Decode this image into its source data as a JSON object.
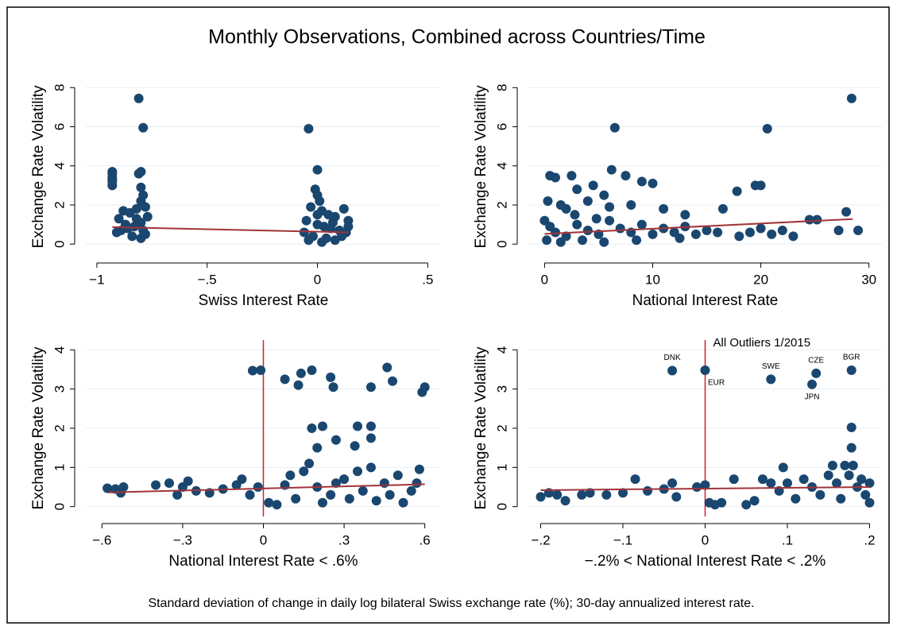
{
  "title": "Monthly Observations, Combined across Countries/Time",
  "note": "Standard deviation of change in daily log bilateral Swiss exchange rate (%); 30-day annualized interest rate.",
  "chart_data": [
    {
      "type": "scatter",
      "x_label": "Swiss Interest Rate",
      "y_label": "Exchange Rate Volatility",
      "color": "#1a476f",
      "fit_color": "#a0343a",
      "grid": true,
      "xlim": [
        -1.05,
        0.56
      ],
      "ylim": [
        -0.6,
        8.5
      ],
      "xticks": [
        {
          "value": -1,
          "label": "−1"
        },
        {
          "value": -0.5,
          "label": "−.5"
        },
        0,
        {
          "value": 0.5,
          "label": ".5"
        }
      ],
      "yticks": [
        0,
        2,
        4,
        6,
        8
      ],
      "points": {
        "x": [
          -0.93,
          -0.93,
          -0.93,
          -0.93,
          -0.93,
          -0.93,
          -0.81,
          -0.79,
          -0.8,
          -0.81,
          -0.8,
          -0.79,
          -0.8,
          -0.82,
          -0.85,
          -0.88,
          -0.9,
          -0.78,
          -0.77,
          -0.8,
          -0.83,
          -0.86,
          -0.89,
          -0.91,
          -0.78,
          -0.8,
          -0.84,
          -0.87,
          -0.79,
          -0.82,
          -0.04,
          0,
          -0.01,
          0,
          0.01,
          -0.03,
          0.02,
          0.05,
          0.08,
          0.12,
          0.14,
          -0.05,
          0,
          0.03,
          0.06,
          0.1,
          0.13,
          -0.06,
          -0.02,
          0.04,
          0.08,
          0.11,
          0.14,
          0.02,
          -0.04,
          0.07,
          0
        ],
        "y": [
          3.0,
          3.2,
          3.4,
          3.6,
          3.7,
          3.3,
          7.45,
          5.95,
          3.7,
          3.6,
          2.9,
          2.5,
          2.2,
          1.8,
          1.6,
          1.7,
          1.3,
          1.9,
          1.4,
          1.1,
          0.9,
          0.8,
          0.7,
          0.6,
          0.5,
          0.3,
          0.4,
          1.0,
          0.7,
          1.3,
          5.9,
          3.8,
          2.8,
          2.5,
          2.2,
          1.9,
          1.7,
          1.5,
          1.4,
          1.8,
          1.2,
          1.2,
          1.0,
          0.9,
          0.8,
          0.7,
          0.6,
          0.6,
          0.4,
          0.3,
          0.2,
          0.4,
          0.9,
          0.1,
          0.2,
          1.1,
          1.5
        ]
      },
      "fit": {
        "x": [
          -0.93,
          0.14
        ],
        "y": [
          0.87,
          0.6
        ]
      }
    },
    {
      "type": "scatter",
      "x_label": "National Interest Rate",
      "y_label": "Exchange Rate Volatility",
      "color": "#1a476f",
      "fit_color": "#a0343a",
      "grid": true,
      "xlim": [
        -1.5,
        31.2
      ],
      "ylim": [
        -0.6,
        8.5
      ],
      "xticks": [
        0,
        10,
        20,
        30
      ],
      "yticks": [
        0,
        2,
        4,
        6,
        8
      ],
      "points": {
        "x": [
          28.4,
          6.5,
          20.6,
          6.2,
          0.5,
          1,
          2.5,
          4.5,
          7.5,
          9,
          10,
          3,
          5.5,
          19.5,
          20,
          17.8,
          0.3,
          1.5,
          2,
          4,
          6,
          8,
          11,
          13,
          16.5,
          24.5,
          25.2,
          27.9,
          27.2,
          29,
          0,
          0.5,
          1,
          2,
          3,
          4,
          5,
          6,
          7,
          8,
          9,
          10,
          11,
          12,
          13,
          14,
          15,
          16,
          18,
          19,
          20,
          21,
          22,
          23,
          0.2,
          1.5,
          3.5,
          5.5,
          8.5,
          12.5,
          2.8,
          4.8
        ],
        "y": [
          7.45,
          5.95,
          5.9,
          3.8,
          3.5,
          3.4,
          3.5,
          3.0,
          3.5,
          3.2,
          3.1,
          2.8,
          2.5,
          3.0,
          3.0,
          2.7,
          2.2,
          2.0,
          1.8,
          2.2,
          1.9,
          2.0,
          1.8,
          1.5,
          1.8,
          1.25,
          1.25,
          1.65,
          0.7,
          0.7,
          1.2,
          0.9,
          0.6,
          0.4,
          1.0,
          0.7,
          0.5,
          1.2,
          0.8,
          0.6,
          1.0,
          0.5,
          0.8,
          0.6,
          0.9,
          0.5,
          0.7,
          0.6,
          0.4,
          0.6,
          0.8,
          0.5,
          0.7,
          0.4,
          0.2,
          0.1,
          0.2,
          0.1,
          0.2,
          0.3,
          1.5,
          1.3
        ]
      },
      "fit": {
        "x": [
          0,
          28.5
        ],
        "y": [
          0.52,
          1.28
        ]
      }
    },
    {
      "type": "scatter",
      "x_label": "National Interest Rate < .6%",
      "y_label": "Exchange Rate Volatility",
      "color": "#1a476f",
      "fit_color": "#a0343a",
      "grid": true,
      "vline": 0,
      "vline_color": "#d0202a",
      "xlim": [
        -0.66,
        0.66
      ],
      "ylim": [
        -0.25,
        4.25
      ],
      "xticks": [
        {
          "value": -0.6,
          "label": "−.6"
        },
        {
          "value": -0.3,
          "label": "−.3"
        },
        0,
        {
          "value": 0.3,
          "label": ".3"
        },
        {
          "value": 0.6,
          "label": ".6"
        }
      ],
      "yticks": [
        0,
        1,
        2,
        3,
        4
      ],
      "points": {
        "x": [
          -0.58,
          -0.55,
          -0.52,
          -0.53,
          -0.4,
          -0.35,
          -0.3,
          -0.32,
          -0.28,
          -0.25,
          -0.2,
          -0.15,
          -0.1,
          -0.08,
          -0.05,
          -0.02,
          -0.04,
          -0.01,
          0.08,
          0.13,
          0.14,
          0.18,
          0.25,
          0.26,
          0.4,
          0.46,
          0.48,
          0.59,
          0.6,
          0.18,
          0.22,
          0.27,
          0.35,
          0.34,
          0.4,
          0.4,
          0.2,
          0.02,
          0.05,
          0.1,
          0.15,
          0.2,
          0.25,
          0.3,
          0.35,
          0.4,
          0.45,
          0.5,
          0.55,
          0.58,
          0.12,
          0.22,
          0.32,
          0.42,
          0.52,
          0.17,
          0.27,
          0.37,
          0.47,
          0.57,
          0.08
        ],
        "y": [
          0.47,
          0.45,
          0.5,
          0.35,
          0.55,
          0.6,
          0.5,
          0.3,
          0.65,
          0.4,
          0.35,
          0.45,
          0.55,
          0.7,
          0.3,
          0.5,
          3.47,
          3.48,
          3.25,
          3.1,
          3.4,
          3.48,
          3.3,
          3.05,
          3.05,
          3.55,
          3.2,
          2.92,
          3.05,
          2.0,
          2.05,
          1.7,
          2.05,
          1.55,
          2.05,
          1.75,
          1.5,
          0.1,
          0.05,
          0.8,
          0.9,
          0.5,
          0.3,
          0.7,
          0.9,
          1.0,
          0.6,
          0.8,
          0.4,
          0.95,
          0.2,
          0.1,
          0.2,
          0.15,
          0.1,
          1.1,
          0.6,
          0.4,
          0.3,
          0.6,
          0.55
        ]
      },
      "fit": {
        "x": [
          -0.58,
          0.6
        ],
        "y": [
          0.36,
          0.57
        ]
      }
    },
    {
      "type": "scatter",
      "x_label": "−.2% < National Interest Rate < .2%",
      "y_label": "Exchange Rate Volatility",
      "annotation": "All Outliers 1/2015",
      "color": "#1a476f",
      "fit_color": "#a0343a",
      "grid": true,
      "vline": 0,
      "vline_color": "#d0202a",
      "xlim": [
        -0.215,
        0.215
      ],
      "ylim": [
        -0.25,
        4.25
      ],
      "xticks": [
        {
          "value": -0.2,
          "label": "−.2"
        },
        {
          "value": -0.1,
          "label": "−.1"
        },
        0,
        {
          "value": 0.1,
          "label": ".1"
        },
        {
          "value": 0.2,
          "label": ".2"
        }
      ],
      "yticks": [
        0,
        1,
        2,
        3,
        4
      ],
      "points": {
        "x": [
          -0.04,
          0,
          0.08,
          0.135,
          0.13,
          0.178,
          -0.2,
          -0.19,
          -0.18,
          -0.17,
          -0.15,
          -0.14,
          -0.12,
          -0.1,
          -0.085,
          -0.07,
          -0.05,
          -0.04,
          -0.035,
          -0.01,
          0,
          0.178,
          0.178,
          0.005,
          0.012,
          0.02,
          0.035,
          0.05,
          0.06,
          0.07,
          0.08,
          0.09,
          0.095,
          0.1,
          0.11,
          0.12,
          0.13,
          0.14,
          0.15,
          0.155,
          0.16,
          0.165,
          0.17,
          0.175,
          0.18,
          0.185,
          0.19,
          0.195,
          0.2,
          0.2
        ],
        "y": [
          3.47,
          3.48,
          3.25,
          3.4,
          3.12,
          3.48,
          0.25,
          0.35,
          0.3,
          0.15,
          0.3,
          0.35,
          0.3,
          0.35,
          0.7,
          0.4,
          0.45,
          0.6,
          0.25,
          0.5,
          0.55,
          2.02,
          1.5,
          0.1,
          0.05,
          0.1,
          0.7,
          0.05,
          0.15,
          0.7,
          0.6,
          0.4,
          1.0,
          0.6,
          0.2,
          0.7,
          0.5,
          0.3,
          0.8,
          1.05,
          0.6,
          0.2,
          1.05,
          0.8,
          1.05,
          0.5,
          0.7,
          0.3,
          0.6,
          0.1
        ],
        "labels": [
          "DNK",
          "EUR",
          "SWE",
          "CZE",
          "JPN",
          "BGR",
          null,
          null,
          null,
          null,
          null,
          null,
          null,
          null,
          null,
          null,
          null,
          null,
          null,
          null,
          null,
          null,
          null,
          null,
          null,
          null,
          null,
          null,
          null,
          null,
          null,
          null,
          null,
          null,
          null,
          null,
          null,
          null,
          null,
          null,
          null,
          null,
          null,
          null,
          null,
          null,
          null,
          null,
          null,
          null
        ]
      },
      "fit": {
        "x": [
          -0.2,
          0.2
        ],
        "y": [
          0.42,
          0.5
        ]
      }
    }
  ]
}
